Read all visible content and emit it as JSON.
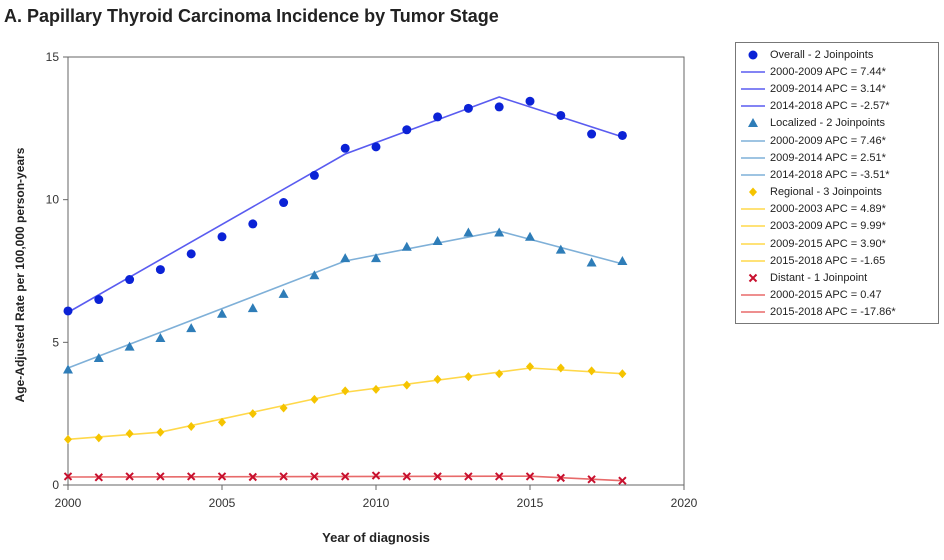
{
  "chart_data": {
    "type": "line",
    "title": "A. Papillary Thyroid Carcinoma Incidence by Tumor Stage",
    "xlabel": "Year of diagnosis",
    "ylabel": "Age-Adjusted Rate per 100,000 person-years",
    "xlim": [
      2000,
      2020
    ],
    "ylim": [
      0,
      15
    ],
    "x_ticks": [
      "2000",
      "2005",
      "2010",
      "2015",
      "2020"
    ],
    "y_ticks": [
      "0",
      "5",
      "10",
      "15"
    ],
    "grid": false,
    "legend_position": "right",
    "years": [
      2000,
      2001,
      2002,
      2003,
      2004,
      2005,
      2006,
      2007,
      2008,
      2009,
      2010,
      2011,
      2012,
      2013,
      2014,
      2015,
      2016,
      2017,
      2018
    ],
    "series": [
      {
        "name": "Overall - 2 Joinpoints",
        "marker": "circle",
        "color": "#0b22d6",
        "line_color": "#5a5cf0",
        "observed": [
          6.1,
          6.5,
          7.2,
          7.55,
          8.1,
          8.7,
          9.15,
          9.9,
          10.85,
          11.8,
          11.85,
          12.45,
          12.9,
          13.2,
          13.25,
          13.45,
          12.95,
          12.3,
          12.25
        ],
        "fitted_points": [
          [
            2000,
            6.05
          ],
          [
            2009,
            11.6
          ],
          [
            2014,
            13.6
          ],
          [
            2018,
            12.2
          ]
        ],
        "segments": [
          "2000-2009 APC =  7.44*",
          "2009-2014 APC =  3.14*",
          "2014-2018 APC = -2.57*"
        ]
      },
      {
        "name": "Localized - 2 Joinpoints",
        "marker": "triangle",
        "color": "#2e7db8",
        "line_color": "#7fb0d8",
        "observed": [
          4.05,
          4.45,
          4.85,
          5.15,
          5.5,
          6.0,
          6.2,
          6.7,
          7.35,
          7.95,
          7.95,
          8.35,
          8.55,
          8.85,
          8.85,
          8.7,
          8.25,
          7.8,
          7.85
        ],
        "fitted_points": [
          [
            2000,
            4.1
          ],
          [
            2009,
            7.85
          ],
          [
            2014,
            8.9
          ],
          [
            2018,
            7.75
          ]
        ],
        "segments": [
          "2000-2009 APC =  7.46*",
          "2009-2014 APC =  2.51*",
          "2014-2018 APC = -3.51*"
        ]
      },
      {
        "name": "Regional - 3 Joinpoints",
        "marker": "diamond",
        "color": "#f5c400",
        "line_color": "#ffd84a",
        "observed": [
          1.6,
          1.65,
          1.8,
          1.85,
          2.05,
          2.2,
          2.5,
          2.7,
          3.0,
          3.3,
          3.35,
          3.5,
          3.7,
          3.8,
          3.9,
          4.15,
          4.1,
          4.0,
          3.9
        ],
        "fitted_points": [
          [
            2000,
            1.6
          ],
          [
            2003,
            1.85
          ],
          [
            2009,
            3.25
          ],
          [
            2015,
            4.1
          ],
          [
            2018,
            3.9
          ]
        ],
        "segments": [
          "2000-2003 APC =  4.89*",
          "2003-2009 APC =  9.99*",
          "2009-2015 APC =  3.90*",
          "2015-2018 APC = -1.65"
        ]
      },
      {
        "name": "Distant - 1 Joinpoint",
        "marker": "x",
        "color": "#c8102e",
        "line_color": "#e86a6a",
        "observed": [
          0.3,
          0.27,
          0.3,
          0.3,
          0.3,
          0.3,
          0.28,
          0.3,
          0.3,
          0.3,
          0.33,
          0.3,
          0.3,
          0.3,
          0.3,
          0.3,
          0.25,
          0.2,
          0.15
        ],
        "fitted_points": [
          [
            2000,
            0.28
          ],
          [
            2015,
            0.31
          ],
          [
            2018,
            0.15
          ]
        ],
        "segments": [
          "2000-2015 APC =  0.47",
          "2015-2018 APC = -17.86*"
        ]
      }
    ]
  }
}
